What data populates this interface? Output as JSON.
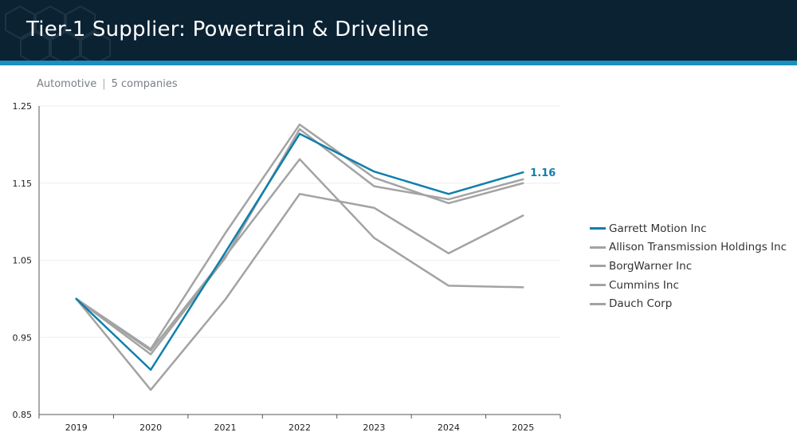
{
  "header": {
    "title": "Tier-1 Supplier: Powertrain & Driveline"
  },
  "subtitle": {
    "sector": "Automotive",
    "separator": "|",
    "count": "5 companies"
  },
  "colors": {
    "highlight": "#0f7fab",
    "peer": "#a3a3a3",
    "header_bg": "#0b2233",
    "accent_bar": "#1a8fc0"
  },
  "chart_data": {
    "type": "line",
    "categories": [
      "2019",
      "2020",
      "2021",
      "2022",
      "2023",
      "2024",
      "2025"
    ],
    "ylim": [
      0.85,
      1.25
    ],
    "yticks": [
      "0.85",
      "0.95",
      "1.05",
      "1.15",
      "1.25"
    ],
    "grid": true,
    "legend_position": "right",
    "series": [
      {
        "name": "Garrett Motion Inc",
        "highlight": true,
        "values": [
          1.0,
          0.908,
          1.06,
          1.214,
          1.165,
          1.136,
          1.164
        ]
      },
      {
        "name": "Allison Transmission Holdings Inc",
        "values": [
          1.0,
          0.935,
          1.085,
          1.226,
          1.157,
          1.124,
          1.15
        ]
      },
      {
        "name": "BorgWarner Inc",
        "values": [
          1.0,
          0.928,
          1.053,
          1.22,
          1.146,
          1.129,
          1.155
        ]
      },
      {
        "name": "Cummins Inc",
        "values": [
          1.0,
          0.933,
          1.055,
          1.181,
          1.079,
          1.017,
          1.015
        ]
      },
      {
        "name": "Dauch Corp",
        "values": [
          1.0,
          0.882,
          0.999,
          1.136,
          1.118,
          1.059,
          1.108
        ]
      }
    ],
    "annotations": [
      {
        "series": "Garrett Motion Inc",
        "category": "2025",
        "label": "1.16"
      }
    ]
  }
}
